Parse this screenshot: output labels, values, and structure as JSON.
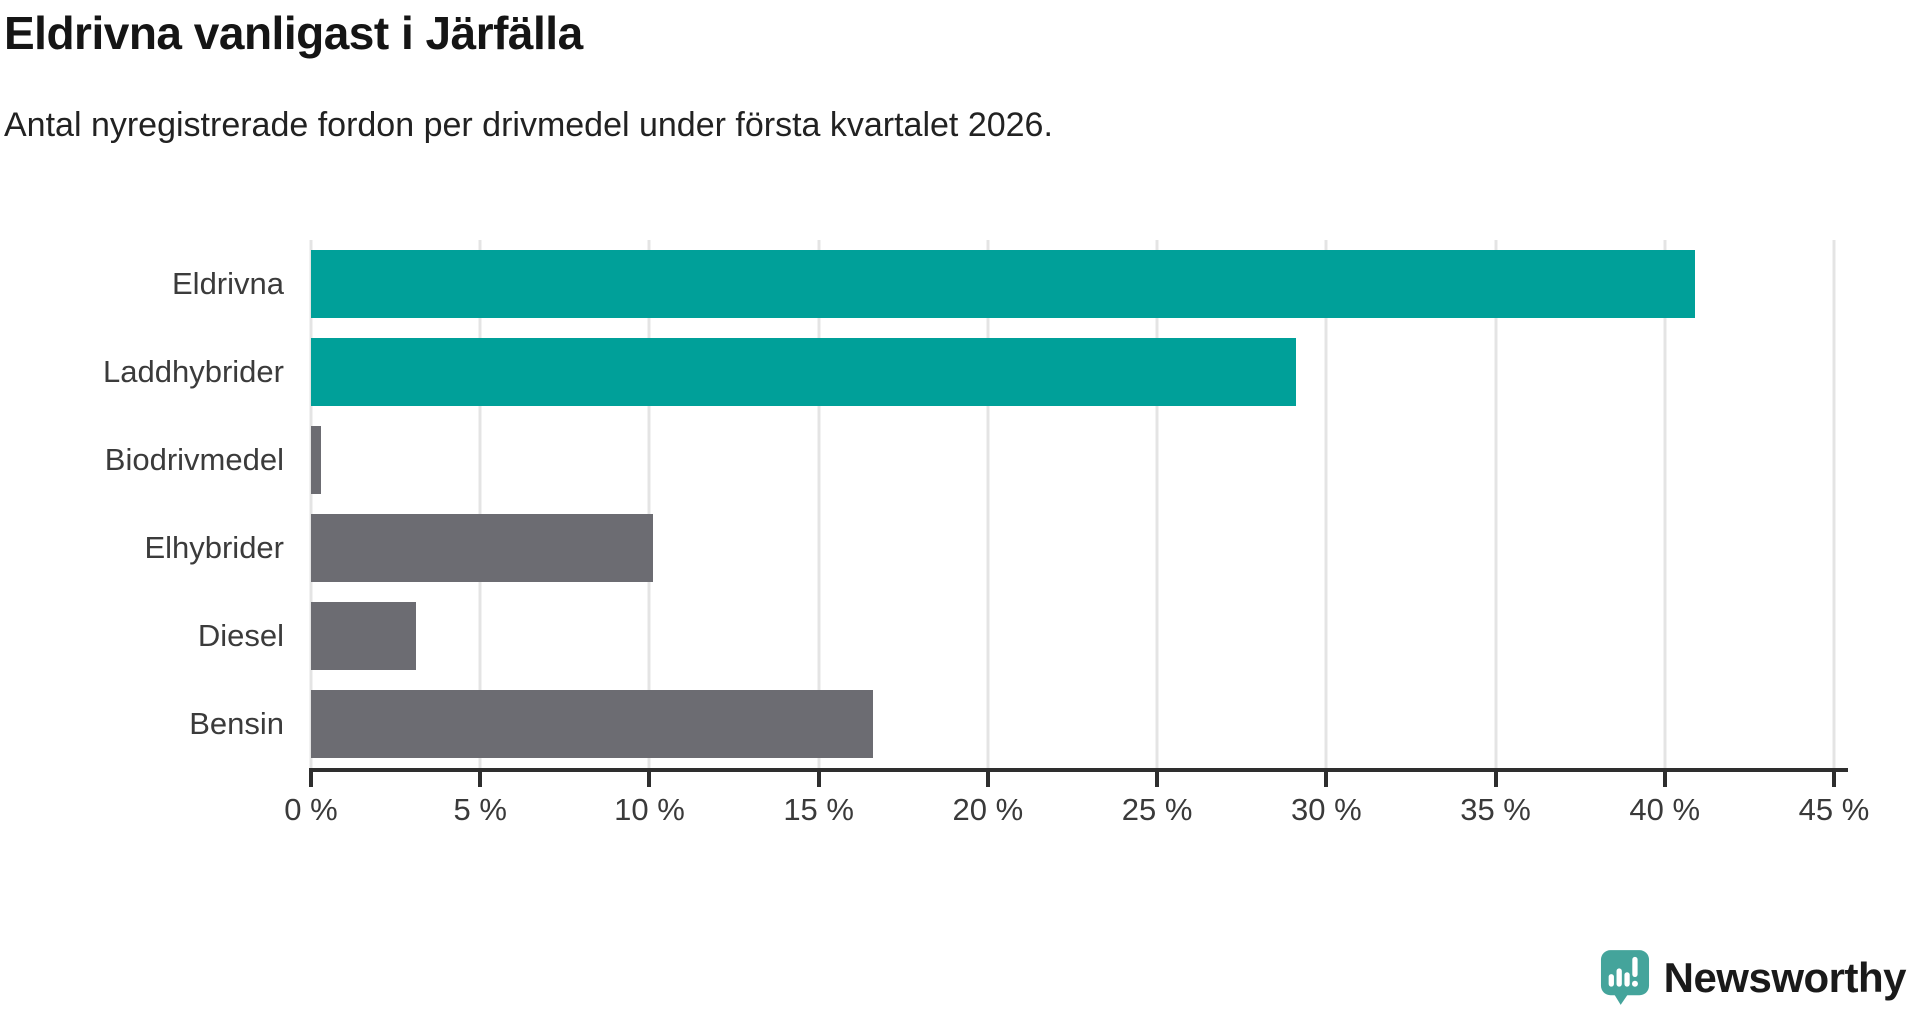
{
  "header": {
    "title": "Eldrivna vanligast i Järfälla",
    "subtitle": "Antal nyregistrerade fordon per drivmedel under första kvartalet 2026."
  },
  "chart_data": {
    "type": "bar",
    "orientation": "horizontal",
    "title": "Eldrivna vanligast i Järfälla",
    "subtitle": "Antal nyregistrerade fordon per drivmedel under första kvartalet 2026.",
    "categories": [
      "Eldrivna",
      "Laddhybrider",
      "Biodrivmedel",
      "Elhybrider",
      "Diesel",
      "Bensin"
    ],
    "values": [
      40.9,
      29.1,
      0.3,
      10.1,
      3.1,
      16.6
    ],
    "unit": "%",
    "bar_colors": [
      "#00a099",
      "#00a099",
      "#6c6c72",
      "#6c6c72",
      "#6c6c72",
      "#6c6c72"
    ],
    "xlabel": "",
    "ylabel": "",
    "xlim": [
      0,
      45
    ],
    "x_ticks": [
      0,
      5,
      10,
      15,
      20,
      25,
      30,
      35,
      40,
      45
    ],
    "x_tick_labels": [
      "0 %",
      "5 %",
      "10 %",
      "15 %",
      "20 %",
      "25 %",
      "30 %",
      "35 %",
      "40 %",
      "45 %"
    ],
    "grid": "vertical",
    "legend": "none"
  },
  "colors": {
    "highlight_bar": "#00a099",
    "default_bar": "#6c6c72",
    "gridline": "#e4e4e4",
    "axis": "#2e2e2e",
    "text": "#3b3b3b",
    "brand_teal": "#44a49b"
  },
  "branding": {
    "logo_icon": "newsworthy-bubble-barchart-icon",
    "logo_text": "Newsworthy",
    "logo_text_color": "#3da199"
  }
}
